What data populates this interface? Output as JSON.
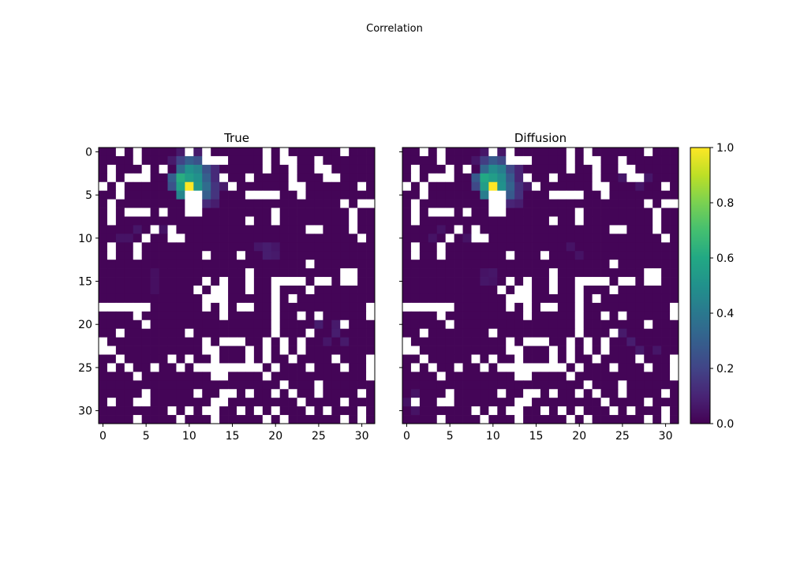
{
  "figure": {
    "suptitle": "Correlation"
  },
  "colorbar": {
    "colormap": "viridis",
    "range": [
      0.0,
      1.0
    ],
    "ticks": [
      0.0,
      0.2,
      0.4,
      0.6,
      0.8,
      1.0
    ],
    "tick_labels": [
      "0.0",
      "0.2",
      "0.4",
      "0.6",
      "0.8",
      "1.0"
    ]
  },
  "chart_data": [
    {
      "type": "heatmap",
      "title": "True",
      "xlabel": "",
      "ylabel": "",
      "grid_size": [
        32,
        32
      ],
      "xticks": [
        0,
        5,
        10,
        15,
        20,
        25,
        30
      ],
      "yticks": [
        0,
        5,
        10,
        15,
        20,
        25,
        30
      ],
      "xlim": [
        -0.5,
        31.5
      ],
      "ylim": [
        31.5,
        -0.5
      ],
      "colormap": "viridis",
      "vmin": 0.0,
      "vmax": 1.0,
      "background_value": 0.01,
      "missing_color": "#ffffff",
      "missing_cells": [
        [
          0,
          2
        ],
        [
          0,
          4
        ],
        [
          0,
          10
        ],
        [
          0,
          12
        ],
        [
          0,
          19
        ],
        [
          0,
          21
        ],
        [
          0,
          28
        ],
        [
          1,
          4
        ],
        [
          1,
          12
        ],
        [
          1,
          13
        ],
        [
          1,
          14
        ],
        [
          1,
          19
        ],
        [
          1,
          21
        ],
        [
          1,
          22
        ],
        [
          1,
          25
        ],
        [
          2,
          1
        ],
        [
          2,
          5
        ],
        [
          2,
          7
        ],
        [
          2,
          19
        ],
        [
          2,
          22
        ],
        [
          2,
          25
        ],
        [
          2,
          26
        ],
        [
          3,
          1
        ],
        [
          3,
          3
        ],
        [
          3,
          4
        ],
        [
          3,
          5
        ],
        [
          3,
          14
        ],
        [
          3,
          17
        ],
        [
          3,
          22
        ],
        [
          3,
          26
        ],
        [
          3,
          27
        ],
        [
          4,
          0
        ],
        [
          4,
          2
        ],
        [
          4,
          15
        ],
        [
          4,
          22
        ],
        [
          4,
          23
        ],
        [
          4,
          30
        ],
        [
          5,
          2
        ],
        [
          5,
          10
        ],
        [
          5,
          11
        ],
        [
          5,
          17
        ],
        [
          5,
          18
        ],
        [
          5,
          19
        ],
        [
          5,
          20
        ],
        [
          5,
          23
        ],
        [
          6,
          1
        ],
        [
          6,
          10
        ],
        [
          6,
          11
        ],
        [
          6,
          28
        ],
        [
          6,
          30
        ],
        [
          6,
          31
        ],
        [
          7,
          1
        ],
        [
          7,
          3
        ],
        [
          7,
          4
        ],
        [
          7,
          5
        ],
        [
          7,
          7
        ],
        [
          7,
          10
        ],
        [
          7,
          11
        ],
        [
          7,
          20
        ],
        [
          7,
          29
        ],
        [
          8,
          1
        ],
        [
          8,
          17
        ],
        [
          8,
          20
        ],
        [
          8,
          29
        ],
        [
          9,
          6
        ],
        [
          9,
          8
        ],
        [
          9,
          24
        ],
        [
          9,
          25
        ],
        [
          9,
          29
        ],
        [
          10,
          5
        ],
        [
          10,
          8
        ],
        [
          10,
          9
        ],
        [
          10,
          30
        ],
        [
          11,
          1
        ],
        [
          11,
          4
        ],
        [
          12,
          1
        ],
        [
          12,
          4
        ],
        [
          12,
          12
        ],
        [
          12,
          16
        ],
        [
          13,
          24
        ],
        [
          14,
          17
        ],
        [
          14,
          28
        ],
        [
          14,
          29
        ],
        [
          15,
          12
        ],
        [
          15,
          14
        ],
        [
          15,
          17
        ],
        [
          15,
          20
        ],
        [
          15,
          21
        ],
        [
          15,
          22
        ],
        [
          15,
          23
        ],
        [
          15,
          25
        ],
        [
          15,
          26
        ],
        [
          15,
          28
        ],
        [
          15,
          29
        ],
        [
          16,
          11
        ],
        [
          16,
          13
        ],
        [
          16,
          14
        ],
        [
          16,
          17
        ],
        [
          16,
          20
        ],
        [
          16,
          24
        ],
        [
          17,
          12
        ],
        [
          17,
          13
        ],
        [
          17,
          14
        ],
        [
          17,
          20
        ],
        [
          17,
          22
        ],
        [
          18,
          0
        ],
        [
          18,
          1
        ],
        [
          18,
          2
        ],
        [
          18,
          3
        ],
        [
          18,
          4
        ],
        [
          18,
          5
        ],
        [
          18,
          12
        ],
        [
          18,
          14
        ],
        [
          18,
          16
        ],
        [
          18,
          17
        ],
        [
          18,
          20
        ],
        [
          18,
          31
        ],
        [
          19,
          4
        ],
        [
          19,
          14
        ],
        [
          19,
          20
        ],
        [
          19,
          23
        ],
        [
          19,
          25
        ],
        [
          19,
          31
        ],
        [
          20,
          5
        ],
        [
          20,
          20
        ],
        [
          20,
          28
        ],
        [
          21,
          2
        ],
        [
          21,
          10
        ],
        [
          21,
          20
        ],
        [
          21,
          24
        ],
        [
          22,
          0
        ],
        [
          22,
          12
        ],
        [
          22,
          14
        ],
        [
          22,
          15
        ],
        [
          22,
          16
        ],
        [
          22,
          19
        ],
        [
          22,
          21
        ],
        [
          22,
          23
        ],
        [
          23,
          0
        ],
        [
          23,
          1
        ],
        [
          23,
          12
        ],
        [
          23,
          13
        ],
        [
          23,
          17
        ],
        [
          23,
          19
        ],
        [
          23,
          21
        ],
        [
          23,
          23
        ],
        [
          24,
          2
        ],
        [
          24,
          8
        ],
        [
          24,
          10
        ],
        [
          24,
          13
        ],
        [
          24,
          17
        ],
        [
          24,
          19
        ],
        [
          24,
          22
        ],
        [
          24,
          27
        ],
        [
          24,
          31
        ],
        [
          25,
          1
        ],
        [
          25,
          3
        ],
        [
          25,
          6
        ],
        [
          25,
          9
        ],
        [
          25,
          11
        ],
        [
          25,
          12
        ],
        [
          25,
          13
        ],
        [
          25,
          14
        ],
        [
          25,
          15
        ],
        [
          25,
          16
        ],
        [
          25,
          17
        ],
        [
          25,
          18
        ],
        [
          25,
          20
        ],
        [
          25,
          24
        ],
        [
          25,
          28
        ],
        [
          25,
          31
        ],
        [
          26,
          4
        ],
        [
          26,
          13
        ],
        [
          26,
          14
        ],
        [
          26,
          19
        ],
        [
          26,
          31
        ],
        [
          27,
          21
        ],
        [
          27,
          25
        ],
        [
          28,
          5
        ],
        [
          28,
          11
        ],
        [
          28,
          14
        ],
        [
          28,
          15
        ],
        [
          28,
          17
        ],
        [
          28,
          20
        ],
        [
          28,
          22
        ],
        [
          28,
          25
        ],
        [
          28,
          30
        ],
        [
          29,
          1
        ],
        [
          29,
          4
        ],
        [
          29,
          5
        ],
        [
          29,
          13
        ],
        [
          29,
          14
        ],
        [
          29,
          23
        ],
        [
          29,
          28
        ],
        [
          30,
          8
        ],
        [
          30,
          10
        ],
        [
          30,
          12
        ],
        [
          30,
          13
        ],
        [
          30,
          16
        ],
        [
          30,
          18
        ],
        [
          30,
          20
        ],
        [
          30,
          24
        ],
        [
          30,
          26
        ],
        [
          30,
          30
        ],
        [
          31,
          4
        ],
        [
          31,
          9
        ],
        [
          31,
          13
        ],
        [
          31,
          19
        ],
        [
          31,
          21
        ],
        [
          31,
          28
        ],
        [
          31,
          30
        ]
      ],
      "values": [
        [
          0,
          9,
          0.07
        ],
        [
          0,
          10,
          0.12
        ],
        [
          0,
          11,
          0.07
        ],
        [
          1,
          8,
          0.07
        ],
        [
          1,
          9,
          0.2
        ],
        [
          1,
          10,
          0.3
        ],
        [
          1,
          11,
          0.25
        ],
        [
          1,
          12,
          0.1
        ],
        [
          2,
          9,
          0.35
        ],
        [
          2,
          10,
          0.5
        ],
        [
          2,
          11,
          0.45
        ],
        [
          2,
          12,
          0.25
        ],
        [
          2,
          13,
          0.12
        ],
        [
          3,
          8,
          0.3
        ],
        [
          3,
          9,
          0.62
        ],
        [
          3,
          10,
          0.55
        ],
        [
          3,
          11,
          0.5
        ],
        [
          3,
          12,
          0.3
        ],
        [
          3,
          13,
          0.12
        ],
        [
          4,
          8,
          0.25
        ],
        [
          4,
          9,
          0.58
        ],
        [
          4,
          10,
          1.0
        ],
        [
          4,
          11,
          0.52
        ],
        [
          4,
          12,
          0.35
        ],
        [
          4,
          13,
          0.15
        ],
        [
          4,
          14,
          0.07
        ],
        [
          5,
          9,
          0.45
        ],
        [
          5,
          12,
          0.3
        ],
        [
          5,
          13,
          0.15
        ],
        [
          6,
          12,
          0.12
        ],
        [
          6,
          13,
          0.08
        ],
        [
          9,
          4,
          0.06
        ],
        [
          9,
          7,
          0.05
        ],
        [
          10,
          2,
          0.05
        ],
        [
          10,
          3,
          0.05
        ],
        [
          11,
          18,
          0.06
        ],
        [
          11,
          19,
          0.08
        ],
        [
          11,
          20,
          0.06
        ],
        [
          12,
          19,
          0.08
        ],
        [
          12,
          20,
          0.07
        ],
        [
          14,
          6,
          0.04
        ],
        [
          15,
          6,
          0.04
        ],
        [
          16,
          6,
          0.04
        ],
        [
          20,
          25,
          0.08
        ],
        [
          20,
          27,
          0.07
        ],
        [
          21,
          27,
          0.08
        ],
        [
          22,
          28,
          0.07
        ],
        [
          22,
          26,
          0.06
        ]
      ]
    },
    {
      "type": "heatmap",
      "title": "Diffusion",
      "xlabel": "",
      "ylabel": "",
      "grid_size": [
        32,
        32
      ],
      "xticks": [
        0,
        5,
        10,
        15,
        20,
        25,
        30
      ],
      "yticks": [
        0,
        5,
        10,
        15,
        20,
        25,
        30
      ],
      "xlim": [
        -0.5,
        31.5
      ],
      "ylim": [
        31.5,
        -0.5
      ],
      "colormap": "viridis",
      "vmin": 0.0,
      "vmax": 1.0,
      "background_value": 0.01,
      "missing_color": "#ffffff",
      "missing_same_as_panel": 0,
      "values": [
        [
          0,
          9,
          0.06
        ],
        [
          0,
          10,
          0.1
        ],
        [
          0,
          11,
          0.06
        ],
        [
          1,
          8,
          0.06
        ],
        [
          1,
          9,
          0.18
        ],
        [
          1,
          10,
          0.28
        ],
        [
          1,
          11,
          0.22
        ],
        [
          1,
          12,
          0.09
        ],
        [
          2,
          9,
          0.33
        ],
        [
          2,
          10,
          0.48
        ],
        [
          2,
          11,
          0.42
        ],
        [
          2,
          12,
          0.22
        ],
        [
          2,
          13,
          0.1
        ],
        [
          3,
          8,
          0.28
        ],
        [
          3,
          9,
          0.6
        ],
        [
          3,
          10,
          0.55
        ],
        [
          3,
          11,
          0.48
        ],
        [
          3,
          12,
          0.28
        ],
        [
          3,
          13,
          0.1
        ],
        [
          4,
          8,
          0.22
        ],
        [
          4,
          9,
          0.55
        ],
        [
          4,
          10,
          1.0
        ],
        [
          4,
          11,
          0.5
        ],
        [
          4,
          12,
          0.32
        ],
        [
          4,
          13,
          0.14
        ],
        [
          4,
          14,
          0.06
        ],
        [
          5,
          9,
          0.42
        ],
        [
          5,
          12,
          0.28
        ],
        [
          5,
          13,
          0.14
        ],
        [
          6,
          12,
          0.1
        ],
        [
          6,
          13,
          0.08
        ],
        [
          2,
          26,
          0.07
        ],
        [
          3,
          25,
          0.06
        ],
        [
          3,
          28,
          0.06
        ],
        [
          4,
          27,
          0.06
        ],
        [
          9,
          4,
          0.05
        ],
        [
          10,
          3,
          0.05
        ],
        [
          10,
          7,
          0.05
        ],
        [
          11,
          19,
          0.05
        ],
        [
          12,
          20,
          0.05
        ],
        [
          14,
          9,
          0.05
        ],
        [
          14,
          10,
          0.06
        ],
        [
          15,
          9,
          0.06
        ],
        [
          15,
          10,
          0.05
        ],
        [
          21,
          25,
          0.07
        ],
        [
          22,
          26,
          0.08
        ],
        [
          23,
          27,
          0.07
        ],
        [
          23,
          29,
          0.06
        ],
        [
          28,
          1,
          0.05
        ],
        [
          29,
          0,
          0.05
        ],
        [
          30,
          1,
          0.05
        ]
      ]
    }
  ]
}
